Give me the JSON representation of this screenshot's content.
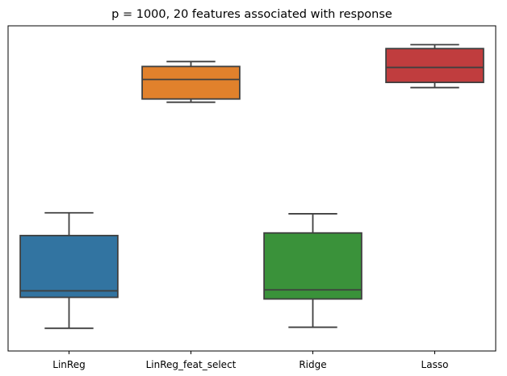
{
  "chart_data": {
    "type": "box",
    "title": "p = 1000, 20 features associated with response",
    "xlabel": "",
    "ylabel": "",
    "categories": [
      "LinReg",
      "LinReg_feat_select",
      "Ridge",
      "Lasso"
    ],
    "boxes": [
      {
        "category": "LinReg",
        "whisker_low": 0.07,
        "q1": 0.165,
        "median": 0.185,
        "q3": 0.355,
        "whisker_high": 0.425,
        "color": "#3274a1"
      },
      {
        "category": "LinReg_feat_select",
        "whisker_low": 0.765,
        "q1": 0.775,
        "median": 0.835,
        "q3": 0.875,
        "whisker_high": 0.89,
        "color": "#e1812c"
      },
      {
        "category": "Ridge",
        "whisker_low": 0.073,
        "q1": 0.16,
        "median": 0.188,
        "q3": 0.363,
        "whisker_high": 0.422,
        "color": "#3a923a"
      },
      {
        "category": "Lasso",
        "whisker_low": 0.81,
        "q1": 0.826,
        "median": 0.872,
        "q3": 0.93,
        "whisker_high": 0.942,
        "color": "#c03d3e"
      }
    ],
    "ylim": [
      0,
      1
    ],
    "y_ticks_shown": false,
    "grid": false,
    "legend": "none"
  }
}
